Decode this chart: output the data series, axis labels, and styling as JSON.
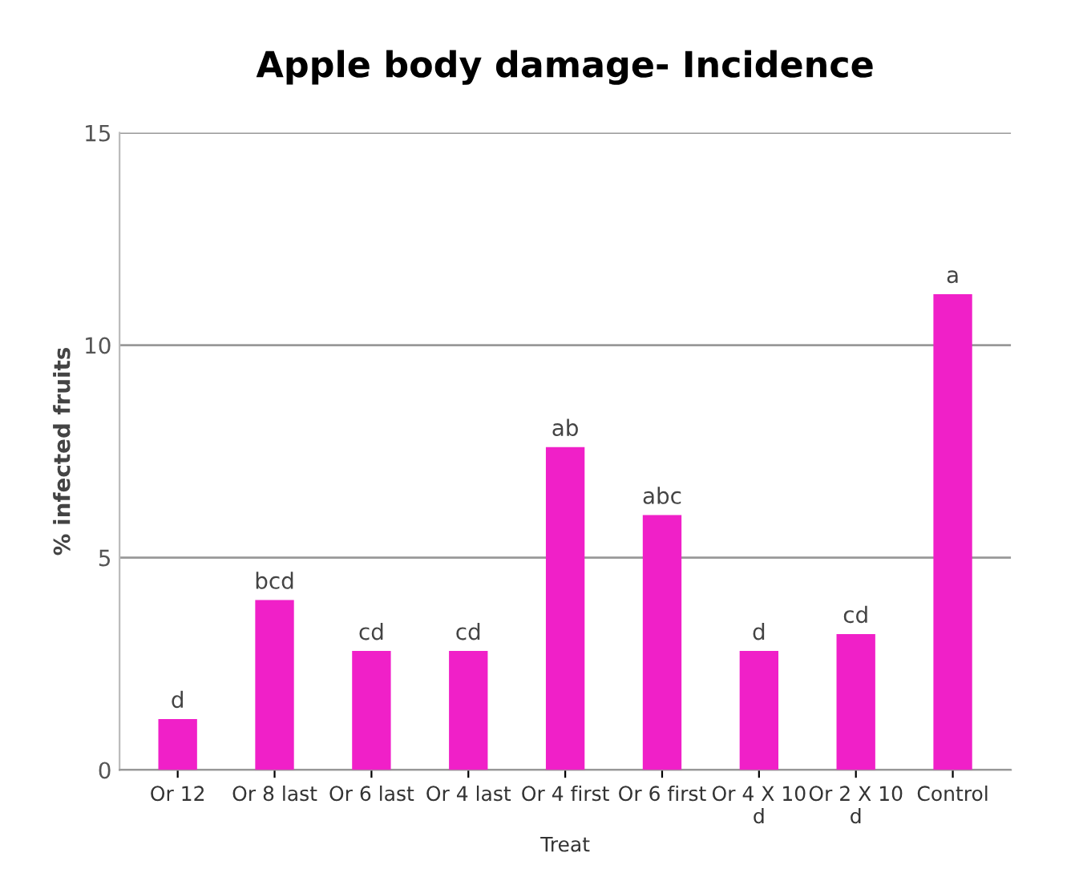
{
  "chart_data": {
    "type": "bar",
    "title": "Apple body damage- Incidence",
    "xlabel": "Treat",
    "ylabel": "% infected fruits",
    "categories": [
      "Or 12",
      "Or 8 last",
      "Or 6 last",
      "Or 4 last",
      "Or 4 first",
      "Or 6 first",
      "Or 4 X 10\nd",
      "Or 2 X 10\nd",
      "Control"
    ],
    "values": [
      1.2,
      4.0,
      2.8,
      2.8,
      7.6,
      6.0,
      2.8,
      3.2,
      11.2
    ],
    "value_labels": [
      "d",
      "bcd",
      "cd",
      "cd",
      "ab",
      "abc",
      "d",
      "cd",
      "a"
    ],
    "color": "#f020c8",
    "ylim": [
      0,
      15
    ],
    "yticks": [
      0,
      5,
      10,
      15
    ],
    "grid": "y"
  }
}
